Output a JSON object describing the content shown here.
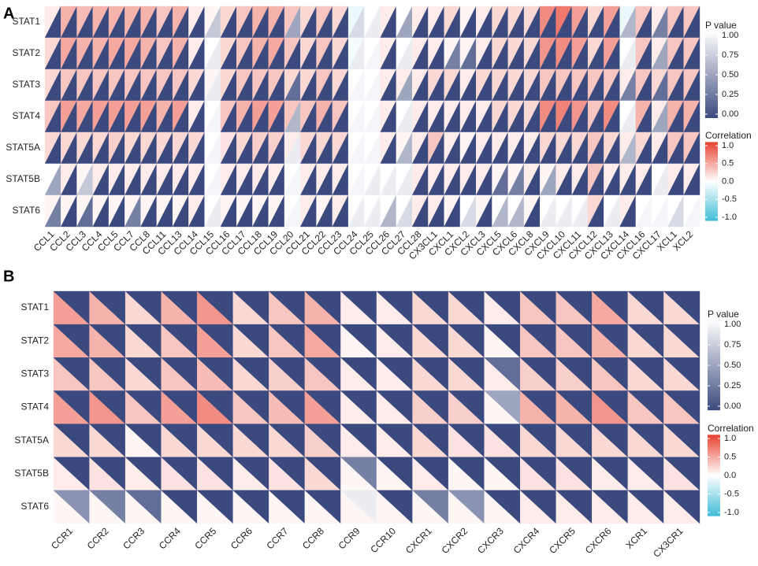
{
  "chart_data": [
    {
      "type": "triangle-heatmap",
      "panel_label": "A",
      "x_categories": [
        "CCL1",
        "CCL2",
        "CCL3",
        "CCL4",
        "CCL5",
        "CCL7",
        "CCL8",
        "CCL11",
        "CCL13",
        "CCL14",
        "CCL15",
        "CCL16",
        "CCL17",
        "CCL18",
        "CCL19",
        "CCL20",
        "CCL21",
        "CCL22",
        "CCL23",
        "CCL24",
        "CCL25",
        "CCL26",
        "CCL27",
        "CCL28",
        "CX3CL1",
        "CXCL1",
        "CXCL2",
        "CXCL3",
        "CXCL5",
        "CXCL6",
        "CXCL8",
        "CXCL9",
        "CXCL10",
        "CXCL11",
        "CXCL12",
        "CXCL13",
        "CXCL14",
        "CXCL16",
        "CXCL17",
        "XCL1",
        "XCL2"
      ],
      "y_categories": [
        "STAT1",
        "STAT2",
        "STAT3",
        "STAT4",
        "STAT5A",
        "STAT5B",
        "STAT6"
      ],
      "series": [
        {
          "name": "P value",
          "colors": [
            "#3b4a7e",
            "#ffffff"
          ],
          "lim": [
            0,
            1
          ],
          "ticks": [
            {
              "value": 1,
              "label": "1.00"
            },
            0.75,
            {
              "value": 0.5,
              "label": "0.50"
            },
            0.25,
            {
              "value": 0,
              "label": "0.00"
            }
          ],
          "values": [
            [
              0,
              0,
              0,
              0,
              0,
              0,
              0,
              0,
              0,
              0,
              0.7,
              0,
              0,
              0,
              0,
              0.5,
              0,
              0,
              0,
              0.8,
              0.9,
              0,
              0.5,
              0,
              0,
              0,
              0,
              0,
              0,
              0,
              0,
              0,
              0,
              0,
              0,
              0,
              0.6,
              0,
              0.3,
              0,
              0
            ],
            [
              0,
              0,
              0,
              0,
              0,
              0,
              0,
              0,
              0,
              0,
              0.9,
              0,
              0,
              0,
              0,
              0,
              0,
              0,
              0,
              0.9,
              0.95,
              0,
              0.9,
              0,
              0,
              0.3,
              0.2,
              0,
              0,
              0,
              0,
              0,
              0,
              0,
              0,
              0,
              0.9,
              0,
              0.5,
              0,
              0
            ],
            [
              0,
              0,
              0,
              0,
              0,
              0,
              0,
              0,
              0,
              0,
              0.9,
              0,
              0,
              0,
              0,
              0.2,
              0,
              0,
              0,
              0.95,
              0.95,
              0,
              0.5,
              0,
              0,
              0,
              0,
              0,
              0,
              0,
              0,
              0,
              0,
              0,
              0,
              0,
              0.3,
              0,
              0.2,
              0,
              0
            ],
            [
              0,
              0,
              0,
              0,
              0,
              0,
              0,
              0,
              0,
              0,
              0.95,
              0,
              0,
              0,
              0,
              0.6,
              0,
              0,
              0,
              0.95,
              0.95,
              0,
              0.9,
              0,
              0,
              0,
              0,
              0,
              0,
              0,
              0,
              0,
              0,
              0,
              0,
              0,
              0.9,
              0,
              0.5,
              0,
              0
            ],
            [
              0,
              0,
              0,
              0,
              0,
              0,
              0,
              0,
              0,
              0,
              0.95,
              0,
              0,
              0,
              0,
              0.9,
              0,
              0,
              0,
              0.95,
              0.95,
              0,
              0.6,
              0,
              0,
              0,
              0,
              0,
              0,
              0,
              0,
              0,
              0,
              0,
              0,
              0,
              0.6,
              0,
              0,
              0,
              0
            ],
            [
              0.5,
              0,
              0.7,
              0,
              0,
              0,
              0,
              0,
              0,
              0,
              0.95,
              0,
              0,
              0,
              0,
              0.95,
              0,
              0,
              0,
              0.95,
              0.9,
              0.9,
              0.9,
              0,
              0,
              0,
              0,
              0,
              0.2,
              0.3,
              0,
              0.5,
              0,
              0,
              0,
              0,
              0,
              0,
              0.9,
              0,
              0
            ],
            [
              0.3,
              0,
              0.2,
              0,
              0,
              0.3,
              0,
              0,
              0,
              0,
              0.9,
              0,
              0,
              0,
              0,
              0.95,
              0,
              0,
              0,
              0.9,
              0.9,
              0.6,
              0.8,
              0,
              0,
              0,
              0.8,
              0,
              0.6,
              0.6,
              0,
              0.9,
              0.9,
              0.9,
              0,
              0.9,
              0,
              0.95,
              0.95,
              0.8,
              0.95
            ]
          ]
        },
        {
          "name": "Correlation",
          "colors": [
            "#3fbcd6",
            "#ffffff",
            "#e8402f"
          ],
          "lim": [
            -1,
            1
          ],
          "ticks": [
            {
              "value": 1,
              "label": "1.0"
            },
            0.5,
            {
              "value": 0,
              "label": "0.0"
            },
            -0.5,
            {
              "value": -1,
              "label": "-1.0"
            }
          ],
          "values": [
            [
              0.1,
              0.4,
              0.35,
              0.4,
              0.4,
              0.4,
              0.4,
              0.3,
              0.4,
              0.1,
              0.05,
              0.2,
              0.3,
              0.4,
              0.4,
              0.3,
              0.2,
              0.3,
              0.2,
              -0.1,
              0,
              0.1,
              0,
              0.1,
              0.1,
              0.2,
              0.05,
              0.1,
              0.2,
              0.2,
              0.2,
              0.6,
              0.7,
              0.5,
              0.2,
              0.5,
              -0.1,
              0.3,
              0.1,
              0.3,
              0.3
            ],
            [
              0.2,
              0.45,
              0.4,
              0.4,
              0.45,
              0.45,
              0.4,
              0.3,
              0.4,
              0.1,
              0,
              0.2,
              0.3,
              0.4,
              0.45,
              0.3,
              0.2,
              0.3,
              0.2,
              -0.05,
              0,
              0.1,
              0,
              0.1,
              0.1,
              0.05,
              0.05,
              0.1,
              0.2,
              0.2,
              0.2,
              0.55,
              0.6,
              0.5,
              0.2,
              0.5,
              0,
              0.3,
              0.1,
              0.3,
              0.3
            ],
            [
              0.2,
              0.3,
              0.3,
              0.3,
              0.3,
              0.3,
              0.3,
              0.3,
              0.3,
              0.2,
              0.05,
              0.2,
              0.3,
              0.3,
              0.3,
              0.2,
              0.2,
              0.3,
              0.2,
              0,
              0,
              0.1,
              0.1,
              0.1,
              0.2,
              0.2,
              0.1,
              0.2,
              0.2,
              0.2,
              0.2,
              0.3,
              0.3,
              0.3,
              0.3,
              0.3,
              0.1,
              0.3,
              0.2,
              0.3,
              0.3
            ],
            [
              0.3,
              0.5,
              0.45,
              0.5,
              0.5,
              0.5,
              0.5,
              0.4,
              0.5,
              0.1,
              0,
              0.3,
              0.4,
              0.5,
              0.5,
              0.3,
              0.3,
              0.4,
              0.3,
              0,
              0,
              0.1,
              0,
              0.1,
              0.1,
              0.1,
              0.1,
              0.1,
              0.2,
              0.2,
              0.2,
              0.6,
              0.65,
              0.55,
              0.3,
              0.6,
              0,
              0.4,
              0.1,
              0.4,
              0.4
            ],
            [
              0.2,
              0.2,
              0.2,
              0.2,
              0.25,
              0.2,
              0.2,
              0.2,
              0.2,
              0.2,
              0,
              0.15,
              0.2,
              0.25,
              0.25,
              0.1,
              0.2,
              0.2,
              0.2,
              0,
              0,
              0.1,
              0.05,
              0.1,
              0.3,
              0.1,
              0.05,
              0.1,
              0.1,
              0.1,
              0.1,
              0.2,
              0.2,
              0.2,
              0.3,
              0.2,
              0.1,
              0.2,
              0.1,
              0.3,
              0.3
            ],
            [
              0,
              0.1,
              0.05,
              0.1,
              0.1,
              0.1,
              0.1,
              0.1,
              0.1,
              0.1,
              0,
              0.1,
              0.1,
              0.1,
              0.1,
              0,
              0.1,
              0.1,
              0.1,
              0,
              0,
              0,
              0,
              0.1,
              0.1,
              0.1,
              0.1,
              0.1,
              0.05,
              0.05,
              0.1,
              0.05,
              0.1,
              0.1,
              0.3,
              0.1,
              0.1,
              0.1,
              0,
              0.1,
              0.1
            ],
            [
              0.05,
              0.05,
              0.05,
              0.05,
              0.05,
              0.05,
              0.05,
              0.05,
              0.05,
              0.1,
              0,
              0.05,
              0.05,
              0.05,
              0.05,
              0,
              0.1,
              0.05,
              0.1,
              0,
              0,
              0,
              0,
              0.1,
              0.1,
              0.05,
              0,
              0.05,
              0,
              0,
              0.05,
              0,
              0,
              0,
              0.2,
              0,
              0.1,
              0,
              0,
              0,
              0
            ]
          ]
        }
      ]
    },
    {
      "type": "triangle-heatmap",
      "panel_label": "B",
      "x_categories": [
        "CCR1",
        "CCR2",
        "CCR3",
        "CCR4",
        "CCR5",
        "CCR6",
        "CCR7",
        "CCR8",
        "CCR9",
        "CCR10",
        "CXCR1",
        "CXCR2",
        "CXCR3",
        "CXCR4",
        "CXCR5",
        "CXCR6",
        "XCR1",
        "CX3CR1"
      ],
      "y_categories": [
        "STAT1",
        "STAT2",
        "STAT3",
        "STAT4",
        "STAT5A",
        "STAT5B",
        "STAT6"
      ],
      "series": [
        {
          "name": "P value",
          "colors": [
            "#3b4a7e",
            "#ffffff"
          ],
          "lim": [
            0,
            1
          ],
          "ticks": [
            {
              "value": 1,
              "label": "1.00"
            },
            0.75,
            {
              "value": 0.5,
              "label": "0.50"
            },
            0.25,
            {
              "value": 0,
              "label": "0.00"
            }
          ],
          "values": [
            [
              0,
              0,
              0,
              0,
              0,
              0,
              0,
              0,
              0,
              0,
              0,
              0,
              0,
              0,
              0,
              0,
              0,
              0
            ],
            [
              0,
              0,
              0,
              0,
              0,
              0,
              0,
              0,
              0,
              0,
              0,
              0,
              0,
              0,
              0,
              0,
              0,
              0
            ],
            [
              0,
              0,
              0,
              0,
              0,
              0,
              0,
              0,
              0,
              0,
              0,
              0,
              0.2,
              0,
              0,
              0,
              0,
              0
            ],
            [
              0,
              0,
              0,
              0,
              0,
              0,
              0,
              0,
              0,
              0,
              0,
              0,
              0.5,
              0,
              0,
              0,
              0,
              0
            ],
            [
              0,
              0,
              0,
              0,
              0,
              0,
              0,
              0,
              0,
              0,
              0,
              0,
              0,
              0,
              0,
              0,
              0,
              0
            ],
            [
              0,
              0,
              0,
              0,
              0,
              0,
              0,
              0,
              0.3,
              0,
              0,
              0,
              0,
              0,
              0,
              0,
              0,
              0
            ],
            [
              0.4,
              0.3,
              0.2,
              0,
              0,
              0,
              0,
              0,
              0.9,
              0,
              0.3,
              0.4,
              0,
              0,
              0,
              0,
              0,
              0
            ]
          ]
        },
        {
          "name": "Correlation",
          "colors": [
            "#3fbcd6",
            "#ffffff",
            "#e8402f"
          ],
          "lim": [
            -1,
            1
          ],
          "ticks": [
            {
              "value": 1,
              "label": "1.0"
            },
            0.5,
            {
              "value": 0,
              "label": "0.0"
            },
            -0.5,
            {
              "value": -1,
              "label": "-1.0"
            }
          ],
          "values": [
            [
              0.5,
              0.4,
              0.2,
              0.4,
              0.55,
              0.2,
              0.3,
              0.4,
              0.1,
              0.1,
              0.2,
              0.2,
              0.1,
              0.3,
              0.3,
              0.45,
              0.2,
              0.2
            ],
            [
              0.45,
              0.4,
              0.2,
              0.3,
              0.5,
              0.2,
              0.3,
              0.45,
              0.05,
              0.1,
              0.2,
              0.2,
              0.05,
              0.3,
              0.3,
              0.4,
              0.2,
              0.2
            ],
            [
              0.3,
              0.3,
              0.2,
              0.3,
              0.35,
              0.2,
              0.25,
              0.3,
              0.1,
              0.1,
              0.2,
              0.2,
              0.1,
              0.25,
              0.25,
              0.3,
              0.2,
              0.2
            ],
            [
              0.5,
              0.55,
              0.3,
              0.5,
              0.6,
              0.3,
              0.35,
              0.5,
              0.1,
              0.1,
              0.25,
              0.25,
              0.05,
              0.4,
              0.4,
              0.55,
              0.3,
              0.3
            ],
            [
              0.2,
              0.2,
              0.05,
              0.2,
              0.2,
              0.2,
              0.2,
              0.25,
              0.1,
              0.1,
              0.2,
              0.15,
              0.15,
              0.2,
              0.2,
              0.2,
              0.2,
              0.2
            ],
            [
              0.1,
              0.15,
              0.1,
              0.15,
              0.15,
              0.1,
              0.15,
              0.2,
              0.05,
              0.05,
              0.1,
              0.05,
              0.05,
              0.15,
              0.15,
              0.1,
              0.1,
              0.15
            ],
            [
              0.05,
              0.05,
              0.05,
              0.05,
              0.05,
              0.05,
              0.05,
              0.05,
              0.05,
              0.05,
              0.05,
              0.05,
              0.05,
              0.1,
              0.1,
              0.1,
              0.1,
              0.1
            ]
          ]
        }
      ]
    }
  ]
}
